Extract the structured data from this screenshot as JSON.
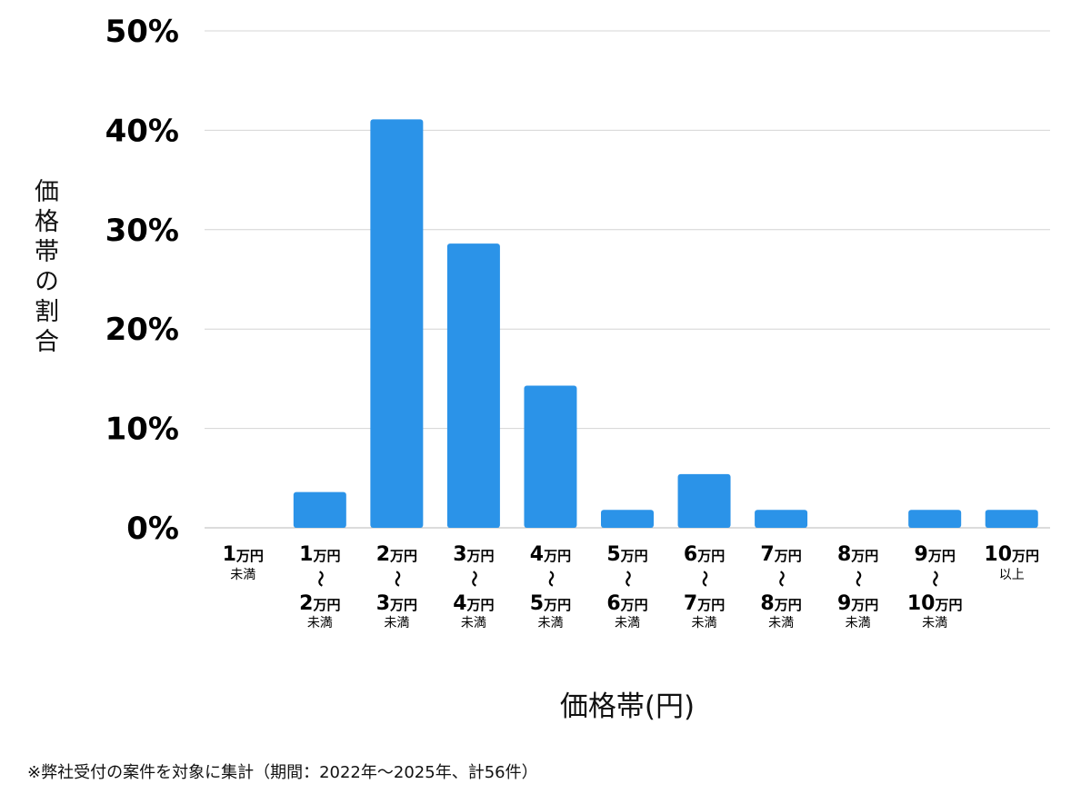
{
  "chart_data": {
    "type": "bar",
    "xlabel": "価格帯(円)",
    "ylabel": "価格帯の割合",
    "ylim": [
      0,
      50
    ],
    "yticks": [
      "0%",
      "10%",
      "20%",
      "30%",
      "40%",
      "50%"
    ],
    "grid": true,
    "color": "#2b93e8",
    "categories": [
      {
        "from": "1",
        "to": null,
        "suffix": "未満"
      },
      {
        "from": "1",
        "to": "2",
        "suffix": "未満"
      },
      {
        "from": "2",
        "to": "3",
        "suffix": "未満"
      },
      {
        "from": "3",
        "to": "4",
        "suffix": "未満"
      },
      {
        "from": "4",
        "to": "5",
        "suffix": "未満"
      },
      {
        "from": "5",
        "to": "6",
        "suffix": "未満"
      },
      {
        "from": "6",
        "to": "7",
        "suffix": "未満"
      },
      {
        "from": "7",
        "to": "8",
        "suffix": "未満"
      },
      {
        "from": "8",
        "to": "9",
        "suffix": "未満"
      },
      {
        "from": "9",
        "to": "10",
        "suffix": "未満"
      },
      {
        "from": "10",
        "to": null,
        "suffix": "以上"
      }
    ],
    "unit": "万円",
    "range_mark": "〜",
    "values": [
      0,
      3.6,
      41.1,
      28.6,
      14.3,
      1.8,
      5.4,
      1.8,
      0,
      1.8,
      1.8
    ]
  },
  "footnote": "※弊社受付の案件を対象に集計（期間：2022年〜2025年、計56件）"
}
